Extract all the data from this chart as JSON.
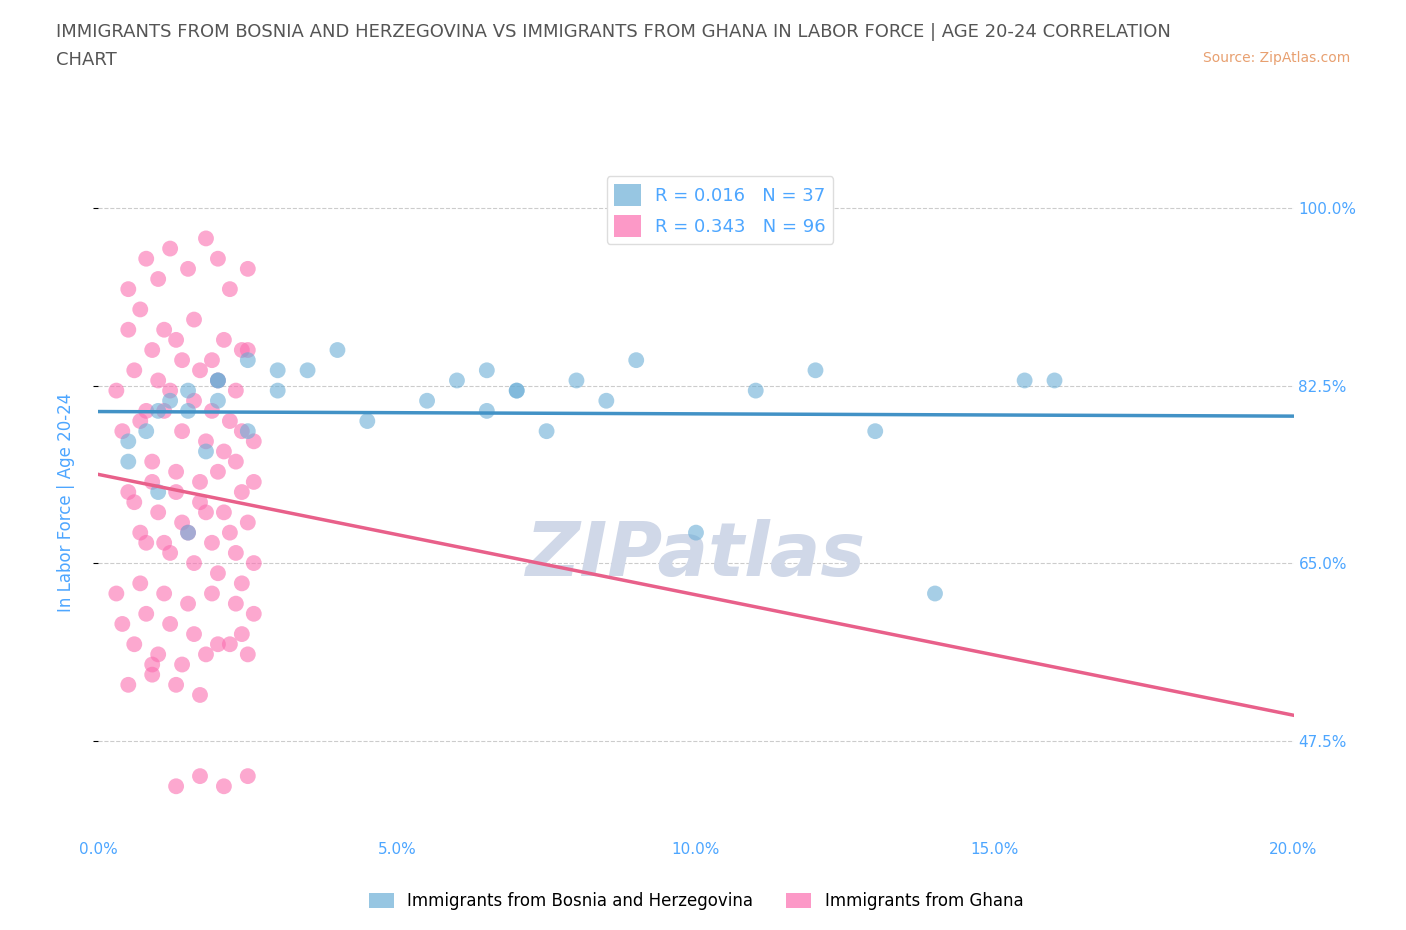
{
  "title_line1": "IMMIGRANTS FROM BOSNIA AND HERZEGOVINA VS IMMIGRANTS FROM GHANA IN LABOR FORCE | AGE 20-24 CORRELATION",
  "title_line2": "CHART",
  "source": "Source: ZipAtlas.com",
  "ylabel": "In Labor Force | Age 20-24",
  "xlim": [
    0.0,
    0.2
  ],
  "ylim": [
    0.38,
    1.04
  ],
  "yticks": [
    0.475,
    0.65,
    0.825,
    1.0
  ],
  "ytick_labels": [
    "47.5%",
    "65.0%",
    "82.5%",
    "100.0%"
  ],
  "xticks": [
    0.0,
    0.05,
    0.1,
    0.15,
    0.2
  ],
  "xtick_labels": [
    "0.0%",
    "5.0%",
    "10.0%",
    "15.0%",
    "20.0%"
  ],
  "bosnia_R": 0.016,
  "bosnia_N": 37,
  "ghana_R": 0.343,
  "ghana_N": 96,
  "bosnia_color": "#6baed6",
  "ghana_color": "#fb6eb0",
  "bosnia_line_color": "#4292c6",
  "ghana_line_color": "#e8608a",
  "title_color": "#555555",
  "axis_label_color": "#4da6ff",
  "source_color": "#e8a070",
  "watermark_color": "#d0d8e8",
  "background_color": "#ffffff",
  "grid_color": "#cccccc",
  "legend_label_color": "#4da6ff",
  "bosnia_legend_label": "Immigrants from Bosnia and Herzegovina",
  "ghana_legend_label": "Immigrants from Ghana",
  "bosnia_x": [
    0.02,
    0.01,
    0.005,
    0.025,
    0.015,
    0.03,
    0.008,
    0.012,
    0.02,
    0.018,
    0.005,
    0.01,
    0.015,
    0.025,
    0.03,
    0.04,
    0.035,
    0.045,
    0.02,
    0.015,
    0.08,
    0.06,
    0.065,
    0.07,
    0.09,
    0.055,
    0.075,
    0.085,
    0.065,
    0.07,
    0.12,
    0.1,
    0.13,
    0.11,
    0.14,
    0.155,
    0.16
  ],
  "bosnia_y": [
    0.83,
    0.8,
    0.77,
    0.85,
    0.82,
    0.84,
    0.78,
    0.81,
    0.83,
    0.76,
    0.75,
    0.72,
    0.8,
    0.78,
    0.82,
    0.86,
    0.84,
    0.79,
    0.81,
    0.68,
    0.83,
    0.83,
    0.8,
    0.82,
    0.85,
    0.81,
    0.78,
    0.81,
    0.84,
    0.82,
    0.84,
    0.68,
    0.78,
    0.82,
    0.62,
    0.83,
    0.83
  ],
  "ghana_x": [
    0.005,
    0.008,
    0.01,
    0.012,
    0.015,
    0.018,
    0.02,
    0.022,
    0.025,
    0.005,
    0.007,
    0.009,
    0.011,
    0.013,
    0.016,
    0.019,
    0.021,
    0.024,
    0.003,
    0.006,
    0.01,
    0.014,
    0.017,
    0.02,
    0.023,
    0.025,
    0.008,
    0.012,
    0.016,
    0.019,
    0.022,
    0.004,
    0.007,
    0.011,
    0.014,
    0.018,
    0.021,
    0.024,
    0.026,
    0.009,
    0.013,
    0.017,
    0.02,
    0.023,
    0.026,
    0.005,
    0.009,
    0.013,
    0.017,
    0.021,
    0.024,
    0.006,
    0.01,
    0.014,
    0.018,
    0.022,
    0.025,
    0.007,
    0.011,
    0.015,
    0.019,
    0.023,
    0.026,
    0.008,
    0.012,
    0.016,
    0.02,
    0.024,
    0.003,
    0.007,
    0.011,
    0.015,
    0.019,
    0.023,
    0.026,
    0.004,
    0.008,
    0.012,
    0.016,
    0.02,
    0.024,
    0.006,
    0.01,
    0.014,
    0.018,
    0.022,
    0.025,
    0.009,
    0.013,
    0.017,
    0.021,
    0.025,
    0.005,
    0.009,
    0.013,
    0.017
  ],
  "ghana_y": [
    0.92,
    0.95,
    0.93,
    0.96,
    0.94,
    0.97,
    0.95,
    0.92,
    0.94,
    0.88,
    0.9,
    0.86,
    0.88,
    0.87,
    0.89,
    0.85,
    0.87,
    0.86,
    0.82,
    0.84,
    0.83,
    0.85,
    0.84,
    0.83,
    0.82,
    0.86,
    0.8,
    0.82,
    0.81,
    0.8,
    0.79,
    0.78,
    0.79,
    0.8,
    0.78,
    0.77,
    0.76,
    0.78,
    0.77,
    0.75,
    0.74,
    0.73,
    0.74,
    0.75,
    0.73,
    0.72,
    0.73,
    0.72,
    0.71,
    0.7,
    0.72,
    0.71,
    0.7,
    0.69,
    0.7,
    0.68,
    0.69,
    0.68,
    0.67,
    0.68,
    0.67,
    0.66,
    0.65,
    0.67,
    0.66,
    0.65,
    0.64,
    0.63,
    0.62,
    0.63,
    0.62,
    0.61,
    0.62,
    0.61,
    0.6,
    0.59,
    0.6,
    0.59,
    0.58,
    0.57,
    0.58,
    0.57,
    0.56,
    0.55,
    0.56,
    0.57,
    0.56,
    0.55,
    0.43,
    0.44,
    0.43,
    0.44,
    0.53,
    0.54,
    0.53,
    0.52
  ]
}
